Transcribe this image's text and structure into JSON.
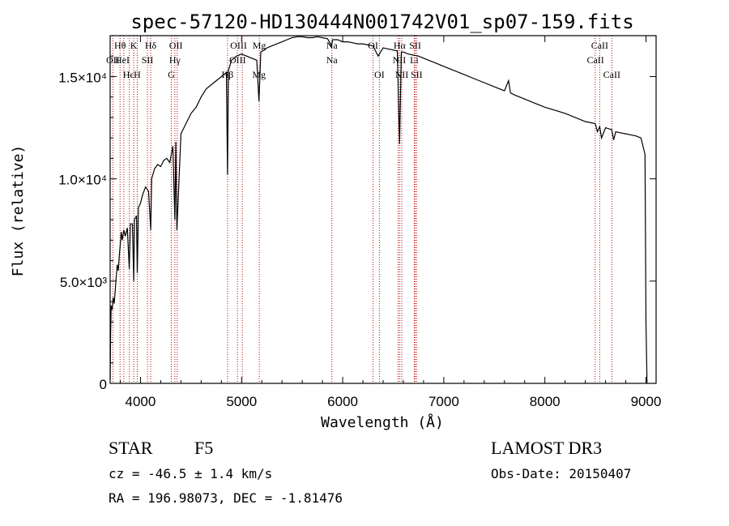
{
  "chart_data": {
    "type": "line",
    "title": "spec-57120-HD130444N001742V01_sp07-159.fits",
    "xlabel": "Wavelength (Å)",
    "ylabel": "Flux (relative)",
    "xlim": [
      3700,
      9100
    ],
    "ylim": [
      0,
      17000
    ],
    "x_ticks": [
      {
        "value": 4000,
        "label": "4000"
      },
      {
        "value": 5000,
        "label": "5000"
      },
      {
        "value": 6000,
        "label": "6000"
      },
      {
        "value": 7000,
        "label": "7000"
      },
      {
        "value": 8000,
        "label": "8000"
      },
      {
        "value": 9000,
        "label": "9000"
      }
    ],
    "y_ticks": [
      {
        "value": 0,
        "label": "0"
      },
      {
        "value": 5000,
        "label": "5.0×10³"
      },
      {
        "value": 10000,
        "label": "1.0×10⁴"
      },
      {
        "value": 15000,
        "label": "1.5×10⁴"
      }
    ],
    "series": [
      {
        "name": "spectrum",
        "x": [
          3700,
          3705,
          3710,
          3720,
          3730,
          3740,
          3750,
          3760,
          3770,
          3780,
          3790,
          3800,
          3810,
          3820,
          3835,
          3850,
          3870,
          3889,
          3900,
          3920,
          3933,
          3940,
          3960,
          3968,
          3980,
          4000,
          4020,
          4050,
          4080,
          4101,
          4110,
          4140,
          4170,
          4200,
          4230,
          4260,
          4290,
          4320,
          4340,
          4350,
          4360,
          4400,
          4450,
          4500,
          4550,
          4600,
          4650,
          4700,
          4750,
          4800,
          4850,
          4861,
          4870,
          4900,
          4950,
          5000,
          5050,
          5100,
          5150,
          5172,
          5190,
          5250,
          5300,
          5350,
          5400,
          5450,
          5500,
          5550,
          5600,
          5650,
          5700,
          5750,
          5800,
          5850,
          5890,
          5900,
          5950,
          6000,
          6050,
          6100,
          6150,
          6200,
          6250,
          6300,
          6350,
          6400,
          6450,
          6500,
          6540,
          6563,
          6580,
          6600,
          6650,
          6700,
          6750,
          6800,
          6850,
          6900,
          6950,
          7000,
          7100,
          7200,
          7300,
          7400,
          7500,
          7550,
          7600,
          7640,
          7660,
          7700,
          7800,
          7900,
          8000,
          8100,
          8200,
          8300,
          8400,
          8498,
          8520,
          8542,
          8560,
          8600,
          8662,
          8680,
          8700,
          8750,
          8800,
          8850,
          8900,
          8950,
          8990,
          9000,
          9010
        ],
        "values": [
          200,
          2500,
          3800,
          3600,
          4200,
          3900,
          4500,
          5200,
          5800,
          5500,
          6200,
          6800,
          7400,
          7000,
          7500,
          7200,
          7600,
          5600,
          7800,
          7800,
          5000,
          8000,
          8200,
          5400,
          8600,
          8800,
          9200,
          9600,
          9400,
          7500,
          10000,
          10500,
          10700,
          10600,
          10900,
          11000,
          10800,
          11600,
          8000,
          11800,
          7500,
          12200,
          12700,
          13200,
          13500,
          14000,
          14400,
          14600,
          14800,
          15000,
          15200,
          10200,
          15300,
          15800,
          16000,
          16100,
          16000,
          15900,
          15800,
          13800,
          16200,
          16400,
          16500,
          16600,
          16700,
          16800,
          16900,
          16950,
          16950,
          16900,
          16900,
          16950,
          16900,
          16850,
          16500,
          16800,
          16800,
          16700,
          16700,
          16650,
          16600,
          16600,
          16550,
          16500,
          16000,
          16400,
          16350,
          16300,
          16250,
          11700,
          16200,
          16200,
          16100,
          16050,
          16000,
          15900,
          15800,
          15700,
          15600,
          15500,
          15300,
          15100,
          14900,
          14700,
          14500,
          14400,
          14300,
          14800,
          14200,
          14100,
          13900,
          13700,
          13500,
          13350,
          13200,
          13000,
          12800,
          12700,
          12300,
          12550,
          12000,
          12500,
          12400,
          11900,
          12300,
          12250,
          12200,
          12150,
          12100,
          12000,
          11200,
          3000,
          0
        ]
      }
    ],
    "line_labels": {
      "level1": [
        {
          "text": "Hθ",
          "x": 3798
        },
        {
          "text": "K",
          "x": 3933
        },
        {
          "text": "Hδ",
          "x": 4101
        },
        {
          "text": "OII",
          "x": 4350
        },
        {
          "text": "OIII",
          "x": 4970
        },
        {
          "text": "Mg",
          "x": 5175
        },
        {
          "text": "Na",
          "x": 5893
        },
        {
          "text": "OI",
          "x": 6300
        },
        {
          "text": "Hα",
          "x": 6563
        },
        {
          "text": "SII",
          "x": 6717
        },
        {
          "text": "CaII",
          "x": 8542
        }
      ],
      "level2": [
        {
          "text": "OII",
          "x": 3727
        },
        {
          "text": "HeI",
          "x": 3820
        },
        {
          "text": "SII",
          "x": 4069
        },
        {
          "text": "Hγ",
          "x": 4340
        },
        {
          "text": "OIII",
          "x": 4960
        },
        {
          "text": "Na",
          "x": 5893
        },
        {
          "text": "NII",
          "x": 6560
        },
        {
          "text": "Li",
          "x": 6708
        },
        {
          "text": "CaII",
          "x": 8500
        }
      ],
      "level3": [
        {
          "text": "Hϵ",
          "x": 3880
        },
        {
          "text": "H",
          "x": 3968
        },
        {
          "text": "G",
          "x": 4305
        },
        {
          "text": "Hβ",
          "x": 4861
        },
        {
          "text": "Mg",
          "x": 5172
        },
        {
          "text": "OI",
          "x": 6363
        },
        {
          "text": "NII",
          "x": 6584
        },
        {
          "text": "SII",
          "x": 6731
        },
        {
          "text": "CaII",
          "x": 8662
        }
      ],
      "marker_lines": [
        3727,
        3798,
        3835,
        3889,
        3933,
        3968,
        4069,
        4101,
        4305,
        4340,
        4363,
        4861,
        4959,
        5007,
        5175,
        5893,
        6300,
        6363,
        6548,
        6563,
        6584,
        6708,
        6717,
        6731,
        8498,
        8542,
        8662
      ],
      "marker_color": "#c00000"
    }
  },
  "info": {
    "object_class": "STAR",
    "subclass": "F5",
    "survey": "LAMOST DR3",
    "redshift_text": "cz = -46.5 ± 1.4 km/s",
    "obs_date_text": "Obs-Date: 20150407",
    "coords_text": "RA = 196.98073, DEC =  -1.81476"
  }
}
